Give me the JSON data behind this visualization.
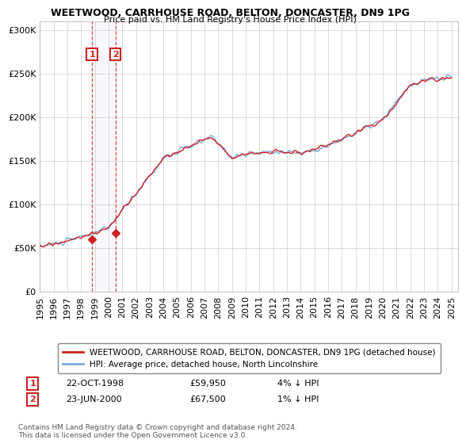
{
  "title": "WEETWOOD, CARRHOUSE ROAD, BELTON, DONCASTER, DN9 1PG",
  "subtitle": "Price paid vs. HM Land Registry's House Price Index (HPI)",
  "legend_line1": "WEETWOOD, CARRHOUSE ROAD, BELTON, DONCASTER, DN9 1PG (detached house)",
  "legend_line2": "HPI: Average price, detached house, North Lincolnshire",
  "note": "Contains HM Land Registry data © Crown copyright and database right 2024.\nThis data is licensed under the Open Government Licence v3.0.",
  "sale_points": [
    {
      "label": "1",
      "date": "22-OCT-1998",
      "price": 59950,
      "rel": "4% ↓ HPI",
      "x": 1998.8
    },
    {
      "label": "2",
      "date": "23-JUN-2000",
      "price": 67500,
      "rel": "1% ↓ HPI",
      "x": 2000.5
    }
  ],
  "hpi_color": "#7aaadd",
  "price_color": "#cc2222",
  "sale_color": "#cc2222",
  "box_color": "#cc2222",
  "ylim": [
    0,
    310000
  ],
  "yticks": [
    0,
    50000,
    100000,
    150000,
    200000,
    250000,
    300000
  ],
  "xlim_start": 1995,
  "xlim_end": 2025.5,
  "background_color": "#ffffff",
  "grid_color": "#cccccc"
}
